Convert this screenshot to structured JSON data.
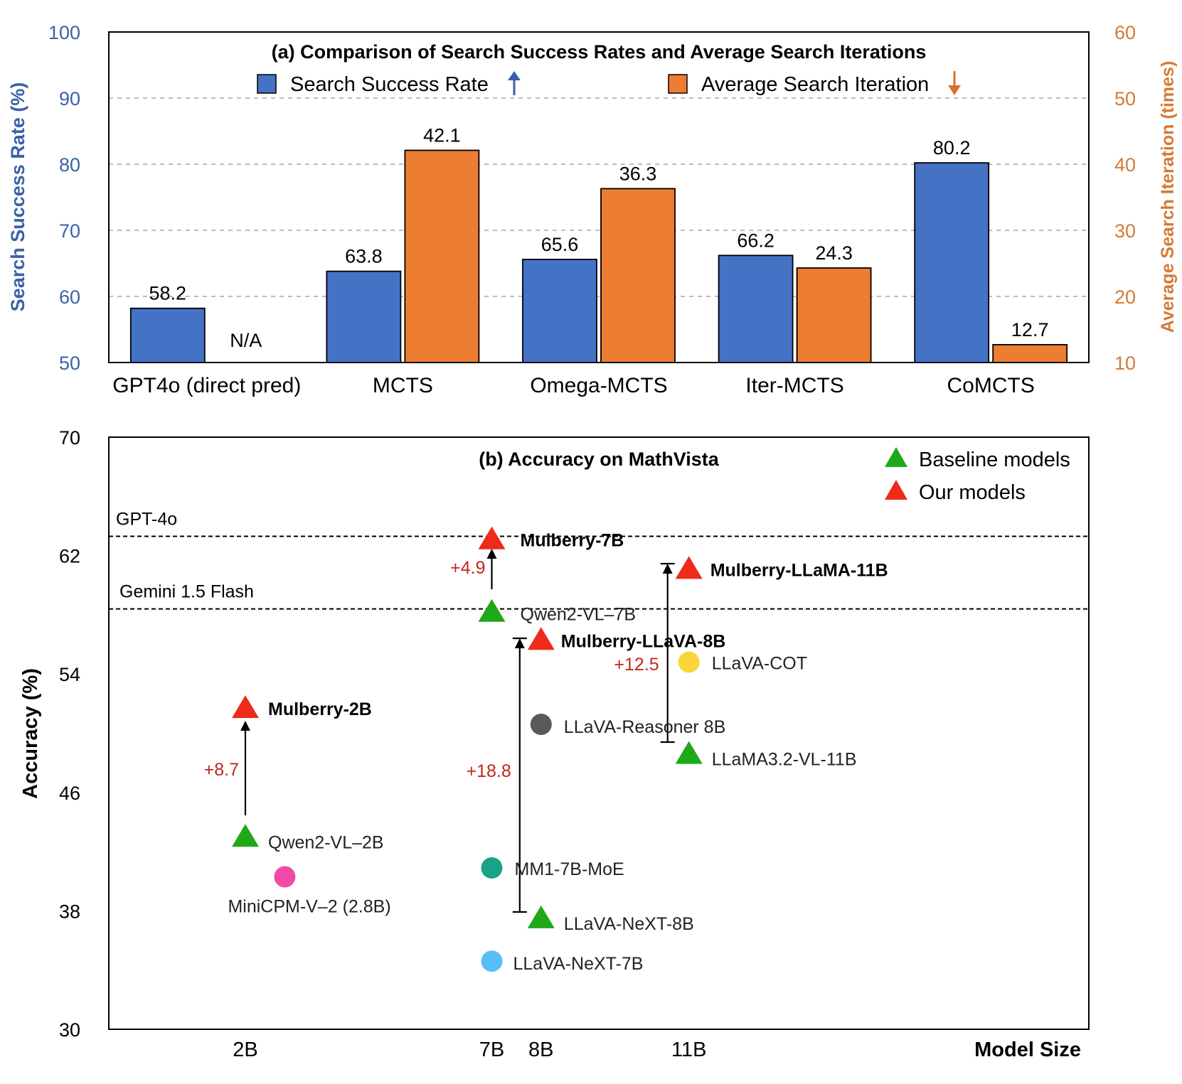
{
  "chart_data": [
    {
      "type": "bar",
      "title": "(a) Comparison of Search Success Rates and Average Search Iterations",
      "categories": [
        "GPT4o (direct pred)",
        "MCTS",
        "Omega-MCTS",
        "Iter-MCTS",
        "CoMCTS"
      ],
      "ylabel": "Search Success Rate (%)",
      "ylabel_right": "Average Search Iteration (times)",
      "ylim": [
        50,
        100
      ],
      "ylim_right": [
        10,
        60
      ],
      "yticks": [
        50,
        60,
        70,
        80,
        90,
        100
      ],
      "yticks_right": [
        10,
        20,
        30,
        40,
        50,
        60
      ],
      "grid": true,
      "na_label": "N/A",
      "series": [
        {
          "name": "Search Success Rate",
          "axis": "left",
          "color": "#4472c4",
          "arrow": "up",
          "arrow_color": "#3b5ea8",
          "values": [
            58.2,
            63.8,
            65.6,
            66.2,
            80.2
          ],
          "labels": [
            "58.2",
            "63.8",
            "65.6",
            "66.2",
            "80.2"
          ]
        },
        {
          "name": "Average Search Iteration",
          "axis": "right",
          "color": "#ed7d31",
          "arrow": "down",
          "arrow_color": "#d8722c",
          "values": [
            null,
            42.1,
            36.3,
            24.3,
            12.7
          ],
          "labels": [
            null,
            "42.1",
            "36.3",
            "24.3",
            "12.7"
          ]
        }
      ],
      "colors": {
        "left_axis": "#3b62a8",
        "right_axis": "#d47a35"
      }
    },
    {
      "type": "scatter",
      "title": "(b) Accuracy on MathVista",
      "xlabel": "Model Size",
      "ylabel": "Accuracy (%)",
      "ylim": [
        30,
        70
      ],
      "yticks": [
        30,
        38,
        46,
        54,
        62,
        70
      ],
      "x_ticks": [
        {
          "label": "2B",
          "x": 2
        },
        {
          "label": "7B",
          "x": 7
        },
        {
          "label": "8B",
          "x": 8
        },
        {
          "label": "11B",
          "x": 11
        }
      ],
      "legend": [
        {
          "label": "Baseline models",
          "color": "#1fa817"
        },
        {
          "label": "Our models",
          "color": "#ee2a1b"
        }
      ],
      "reference_lines": [
        {
          "label": "GPT-4o",
          "y": 63.3
        },
        {
          "label": "Gemini 1.5 Flash",
          "y": 58.4
        }
      ],
      "points": [
        {
          "label": "Mulberry-2B",
          "x": 2,
          "y": 51.7,
          "shape": "triangle",
          "color": "#ee2a1b",
          "bold": true
        },
        {
          "label": "Qwen2-VL–2B",
          "x": 2,
          "y": 43.0,
          "shape": "triangle",
          "color": "#1fa817",
          "bold": false
        },
        {
          "label": "MiniCPM-V–2 (2.8B)",
          "x": 2.8,
          "y": 40.3,
          "shape": "circle",
          "color": "#f24aa6",
          "bold": false
        },
        {
          "label": "Mulberry-7B",
          "x": 7,
          "y": 63.1,
          "shape": "triangle",
          "color": "#ee2a1b",
          "bold": true
        },
        {
          "label": "Qwen2-VL–7B",
          "x": 7,
          "y": 58.2,
          "shape": "triangle",
          "color": "#1fa817",
          "bold": false
        },
        {
          "label": "MM1-7B-MoE",
          "x": 7,
          "y": 40.9,
          "shape": "circle",
          "color": "#17a38a",
          "bold": false
        },
        {
          "label": "LLaVA-NeXT-7B",
          "x": 7,
          "y": 34.6,
          "shape": "circle",
          "color": "#56c0f6",
          "bold": false
        },
        {
          "label": "Mulberry-LLaVA-8B",
          "x": 8,
          "y": 56.3,
          "shape": "triangle",
          "color": "#ee2a1b",
          "bold": true
        },
        {
          "label": "LLaVA-Reasoner 8B",
          "x": 8,
          "y": 50.6,
          "shape": "circle",
          "color": "#595959",
          "bold": false
        },
        {
          "label": "LLaVA-NeXT-8B",
          "x": 8,
          "y": 37.5,
          "shape": "triangle",
          "color": "#1fa817",
          "bold": false
        },
        {
          "label": "Mulberry-LLaMA-11B",
          "x": 11,
          "y": 61.1,
          "shape": "triangle",
          "color": "#ee2a1b",
          "bold": true
        },
        {
          "label": "LLaVA-COT",
          "x": 11,
          "y": 54.8,
          "shape": "circle",
          "color": "#fad63a",
          "bold": false
        },
        {
          "label": "LLaMA3.2-VL-11B",
          "x": 11,
          "y": 48.6,
          "shape": "triangle",
          "color": "#1fa817",
          "bold": false
        }
      ],
      "improvements": [
        {
          "label": "+8.7",
          "x": 2,
          "from": 43.0,
          "to": 51.7
        },
        {
          "label": "+4.9",
          "x": 7,
          "from": 58.2,
          "to": 63.1
        },
        {
          "label": "+18.8",
          "x": 8,
          "from": 37.5,
          "to": 56.3
        },
        {
          "label": "+12.5",
          "x": 11,
          "from": 48.6,
          "to": 61.1
        }
      ],
      "colors": {
        "improvement_text": "#c0261d"
      }
    }
  ]
}
